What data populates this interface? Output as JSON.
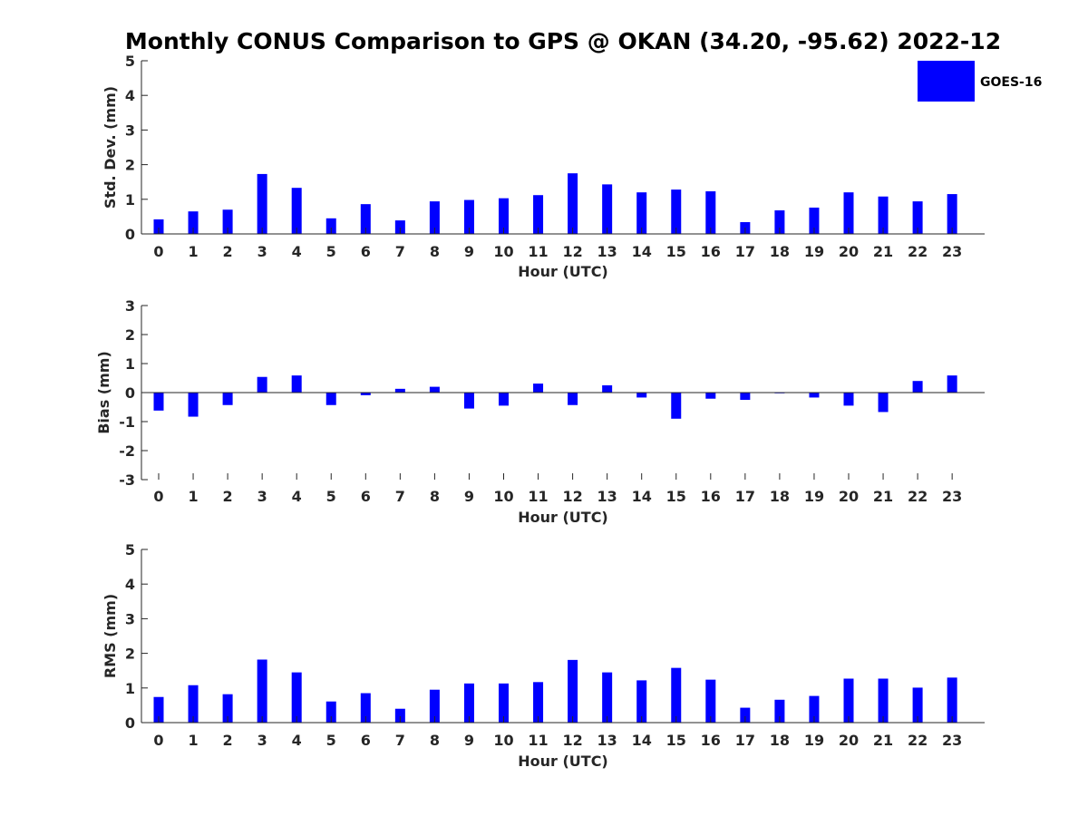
{
  "title": "Monthly CONUS Comparison to GPS @ OKAN (34.20, -95.62) 2022-12",
  "legend": {
    "label": "GOES-16",
    "color": "#0000ff"
  },
  "bar_color": "#0000ff",
  "axis_color": "#262626",
  "chart_data": [
    {
      "type": "bar",
      "id": "std",
      "title": "Monthly CONUS Comparison to GPS @ OKAN (34.20, -95.62) 2022-12",
      "xlabel": "Hour (UTC)",
      "ylabel": "Std. Dev. (mm)",
      "ylim": [
        0,
        5
      ],
      "yticks": [
        0,
        1,
        2,
        3,
        4,
        5
      ],
      "categories": [
        "0",
        "1",
        "2",
        "3",
        "4",
        "5",
        "6",
        "7",
        "8",
        "9",
        "10",
        "11",
        "12",
        "13",
        "14",
        "15",
        "16",
        "17",
        "18",
        "19",
        "20",
        "21",
        "22",
        "23"
      ],
      "series": [
        {
          "name": "GOES-16",
          "values": [
            0.42,
            0.65,
            0.7,
            1.73,
            1.33,
            0.45,
            0.86,
            0.39,
            0.94,
            0.98,
            1.03,
            1.12,
            1.75,
            1.43,
            1.2,
            1.28,
            1.23,
            0.34,
            0.68,
            0.76,
            1.2,
            1.08,
            0.94,
            1.15
          ]
        }
      ]
    },
    {
      "type": "bar",
      "id": "bias",
      "xlabel": "Hour (UTC)",
      "ylabel": "Bias (mm)",
      "ylim": [
        -3,
        3
      ],
      "yticks": [
        -3,
        -2,
        -1,
        0,
        1,
        2,
        3
      ],
      "categories": [
        "0",
        "1",
        "2",
        "3",
        "4",
        "5",
        "6",
        "7",
        "8",
        "9",
        "10",
        "11",
        "12",
        "13",
        "14",
        "15",
        "16",
        "17",
        "18",
        "19",
        "20",
        "21",
        "22",
        "23"
      ],
      "series": [
        {
          "name": "GOES-16",
          "values": [
            -0.62,
            -0.83,
            -0.43,
            0.54,
            0.59,
            -0.43,
            -0.09,
            0.13,
            0.2,
            -0.55,
            -0.45,
            0.31,
            -0.43,
            0.25,
            -0.17,
            -0.9,
            -0.21,
            -0.25,
            -0.02,
            -0.17,
            -0.45,
            -0.67,
            0.4,
            0.59
          ]
        }
      ]
    },
    {
      "type": "bar",
      "id": "rms",
      "xlabel": "Hour (UTC)",
      "ylabel": "RMS (mm)",
      "ylim": [
        0,
        5
      ],
      "yticks": [
        0,
        1,
        2,
        3,
        4,
        5
      ],
      "categories": [
        "0",
        "1",
        "2",
        "3",
        "4",
        "5",
        "6",
        "7",
        "8",
        "9",
        "10",
        "11",
        "12",
        "13",
        "14",
        "15",
        "16",
        "17",
        "18",
        "19",
        "20",
        "21",
        "22",
        "23"
      ],
      "series": [
        {
          "name": "GOES-16",
          "values": [
            0.74,
            1.08,
            0.82,
            1.82,
            1.45,
            0.61,
            0.85,
            0.4,
            0.95,
            1.13,
            1.13,
            1.17,
            1.81,
            1.45,
            1.22,
            1.58,
            1.24,
            0.43,
            0.66,
            0.77,
            1.27,
            1.27,
            1.01,
            1.3
          ]
        }
      ]
    }
  ]
}
